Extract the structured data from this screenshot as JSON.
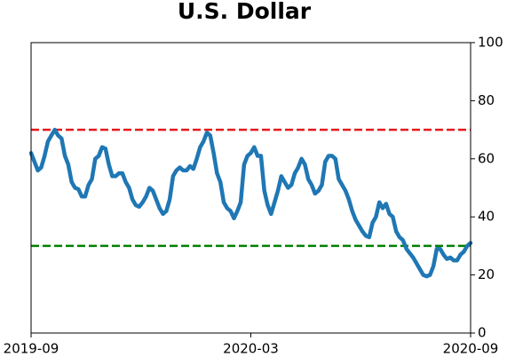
{
  "chart_data": {
    "type": "line",
    "title": "U.S. Dollar",
    "xticks": [
      "2019-09",
      "2020-03",
      "2020-09"
    ],
    "ylim": [
      0,
      100
    ],
    "yticks": [
      0,
      20,
      40,
      60,
      80,
      100
    ],
    "y_axis_side": "right",
    "hlines": [
      {
        "value": 70,
        "color": "#e31a1c",
        "style": "dashed"
      },
      {
        "value": 30,
        "color": "#008000",
        "style": "dashed"
      }
    ],
    "series": [
      {
        "color": "#1f77b4",
        "values": [
          62,
          59,
          56,
          57,
          61,
          66,
          68,
          70,
          68,
          67,
          61,
          58,
          52,
          50,
          49.5,
          47,
          47,
          51,
          53,
          60,
          61,
          64,
          63.5,
          58,
          54,
          54,
          55,
          55,
          52,
          50,
          46,
          44,
          43.5,
          45,
          47,
          50,
          49,
          46,
          43,
          41,
          42,
          46,
          54,
          56,
          57,
          56,
          56,
          57.5,
          56.5,
          60,
          64,
          66,
          69,
          68,
          62,
          55,
          52,
          45,
          43,
          42,
          39.5,
          42,
          45,
          58,
          61,
          62,
          64,
          61,
          61,
          49,
          44,
          41,
          45,
          49,
          54,
          52,
          50,
          51,
          55,
          57,
          60,
          58,
          53,
          51,
          48,
          49,
          51,
          59,
          61,
          61,
          60,
          53,
          51,
          49,
          46,
          42,
          39,
          37,
          35,
          33.5,
          33,
          38,
          40,
          45,
          43,
          44.5,
          41,
          40,
          35,
          33,
          32,
          29,
          27.5,
          26,
          24,
          22,
          20,
          19.5,
          20,
          23,
          29,
          29,
          27,
          25.5,
          26,
          25,
          25,
          27,
          28,
          30,
          31
        ]
      }
    ]
  }
}
